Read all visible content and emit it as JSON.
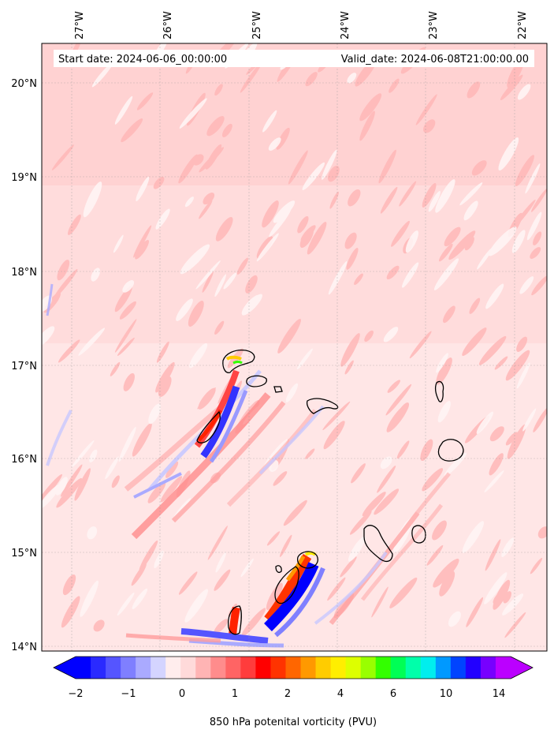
{
  "map": {
    "header": {
      "start_date": "Start date: 2024-06-06_00:00:00",
      "valid_date": "Valid_date: 2024-06-08T21:00:00.00"
    },
    "lon_ticks": [
      "27°W",
      "26°W",
      "25°W",
      "24°W",
      "23°W",
      "22°W"
    ],
    "lat_ticks": [
      "20°N",
      "19°N",
      "18°N",
      "17°N",
      "16°N",
      "15°N",
      "14°N"
    ],
    "colorbar": {
      "tick_labels": [
        "−2",
        "−1",
        "0",
        "1",
        "2",
        "4",
        "6",
        "10",
        "14"
      ],
      "label": "850 hPa potenital vorticity (PVU)",
      "colors": [
        "#0000ff",
        "#2a2aff",
        "#5555ff",
        "#7f7fff",
        "#aaaaff",
        "#d4d4ff",
        "#ffeded",
        "#ffdada",
        "#ffb4b4",
        "#ff8c8c",
        "#ff6464",
        "#ff3c3c",
        "#ff0000",
        "#ff3300",
        "#ff6600",
        "#ff9900",
        "#ffcc00",
        "#ffee00",
        "#ddff00",
        "#99ff00",
        "#33ff00",
        "#00ff55",
        "#00ffaa",
        "#00eeee",
        "#0099ff",
        "#0044ff",
        "#2200ff",
        "#7700ff",
        "#bb00ff"
      ]
    },
    "colors": {
      "background_field": "#ffd6d6",
      "positive_pv": "#ff9c9c",
      "negative_pv": "#2a2aff",
      "coastline": "#000000"
    }
  }
}
